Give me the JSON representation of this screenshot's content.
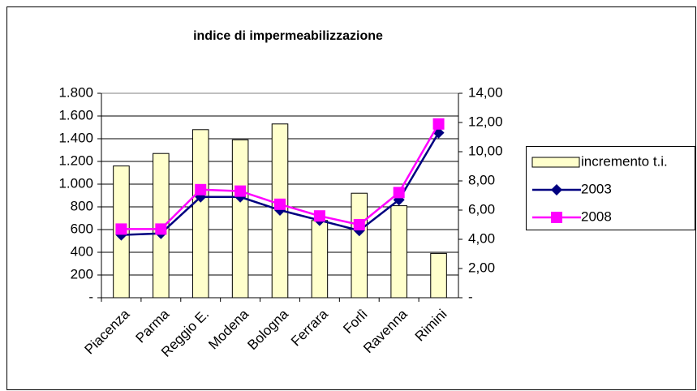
{
  "chart_data": {
    "type": "bar_line",
    "title": "indice di impermeabilizzazione",
    "categories": [
      "Piacenza",
      "Parma",
      "Reggio E.",
      "Modena",
      "Bologna",
      "Ferrara",
      "Forlì",
      "Ravenna",
      "Rimini"
    ],
    "series": [
      {
        "name": "incremento t.i.",
        "type": "bar",
        "color": "#ffffcc",
        "values": [
          1160,
          1270,
          1480,
          1390,
          1530,
          680,
          920,
          810,
          390
        ]
      },
      {
        "name": "2003",
        "type": "line",
        "axis": "y2",
        "color": "#000080",
        "values": [
          4.3,
          4.4,
          6.9,
          6.9,
          6.0,
          5.3,
          4.6,
          6.7,
          11.3
        ]
      },
      {
        "name": "2008",
        "type": "line",
        "axis": "y2",
        "color": "#ff00ff",
        "values": [
          4.7,
          4.7,
          7.4,
          7.3,
          6.4,
          5.6,
          5.0,
          7.2,
          11.9
        ]
      }
    ],
    "ylim": [
      0,
      1800
    ],
    "yticks": [
      {
        "value": 0,
        "label": "-"
      },
      200,
      400,
      600,
      800,
      {
        "value": 1000,
        "label": "1.000"
      },
      {
        "value": 1200,
        "label": "1.200"
      },
      {
        "value": 1400,
        "label": "1.400"
      },
      {
        "value": 1600,
        "label": "1.600"
      },
      {
        "value": 1800,
        "label": "1.800"
      }
    ],
    "y2lim": [
      0,
      14
    ],
    "y2ticks": [
      {
        "value": 0,
        "label": "-"
      },
      {
        "value": 2,
        "label": "2,00"
      },
      {
        "value": 4,
        "label": "4,00"
      },
      {
        "value": 6,
        "label": "6,00"
      },
      {
        "value": 8,
        "label": "8,00"
      },
      {
        "value": 10,
        "label": "10,00"
      },
      {
        "value": 12,
        "label": "12,00"
      },
      {
        "value": 14,
        "label": "14,00"
      }
    ],
    "grid": true,
    "legend": "right"
  }
}
